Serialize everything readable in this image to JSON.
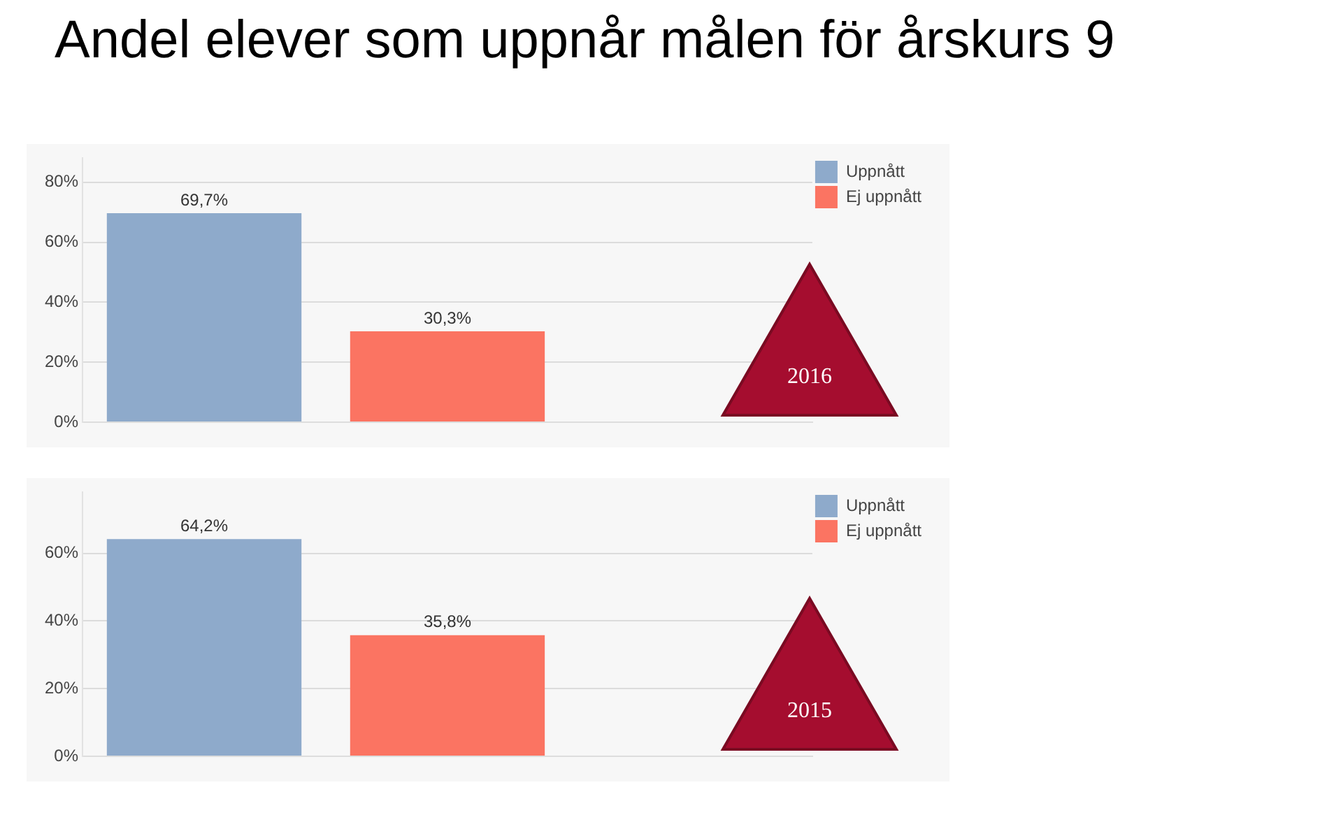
{
  "chart_data": [
    {
      "type": "bar",
      "title": "Andel elever som uppnår målen för årskurs 9",
      "categories": [
        null,
        null,
        null
      ],
      "legend": "top right",
      "grid": "y",
      "ylim": [
        0,
        88
      ],
      "yticks": [
        {
          "value": 0,
          "label": "0%"
        },
        {
          "value": 20,
          "label": "20%"
        },
        {
          "value": 40,
          "label": "40%"
        },
        {
          "value": 60,
          "label": "60%"
        },
        {
          "value": 80,
          "label": "80%"
        }
      ],
      "annotations": [
        "2016"
      ],
      "series": [
        {
          "name": "Uppnått",
          "color": "#8eaacb",
          "values": [
            69.7,
            null,
            null
          ],
          "value_labels": [
            "69,7%",
            null,
            null
          ]
        },
        {
          "name": "Ej uppnått",
          "color": "#fb7462",
          "values": [
            null,
            30.3,
            null
          ],
          "value_labels": [
            null,
            "30,3%",
            null
          ]
        }
      ]
    },
    {
      "type": "bar",
      "categories": [
        null,
        null,
        null
      ],
      "legend": "top right",
      "grid": "y",
      "ylim": [
        0,
        78
      ],
      "yticks": [
        {
          "value": 0,
          "label": "0%"
        },
        {
          "value": 20,
          "label": "20%"
        },
        {
          "value": 40,
          "label": "40%"
        },
        {
          "value": 60,
          "label": "60%"
        }
      ],
      "annotations": [
        "2015"
      ],
      "series": [
        {
          "name": "Uppnått",
          "color": "#8eaacb",
          "values": [
            64.2,
            null,
            null
          ],
          "value_labels": [
            "64,2%",
            null,
            null
          ]
        },
        {
          "name": "Ej uppnått",
          "color": "#fb7462",
          "values": [
            null,
            35.8,
            null
          ],
          "value_labels": [
            null,
            "35,8%",
            null
          ]
        }
      ]
    }
  ]
}
